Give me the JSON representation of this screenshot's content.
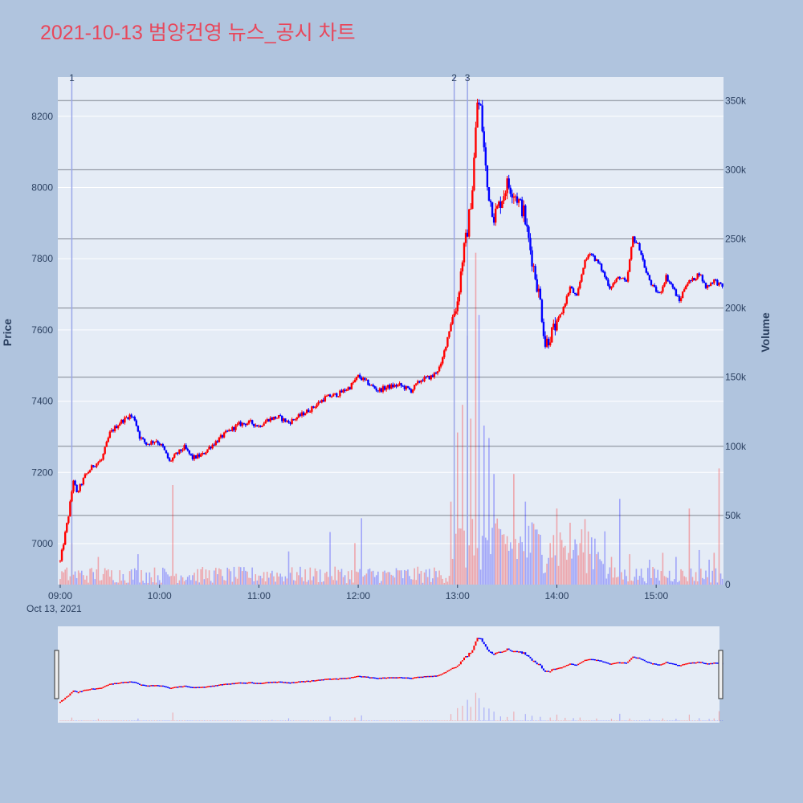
{
  "chart_data": {
    "type": "candlestick",
    "title": "2021-10-13 범양건영 뉴스_공시 차트",
    "ylabel": "Price",
    "y2label": "Volume",
    "ylim": [
      6885,
      8310
    ],
    "y2lim": [
      0,
      367000
    ],
    "price_ticks": [
      "7000",
      "7200",
      "7400",
      "7600",
      "7800",
      "8000",
      "8200"
    ],
    "volume_ticks": [
      "0",
      "50k",
      "100k",
      "150k",
      "200k",
      "250k",
      "300k",
      "350k"
    ],
    "time_ticks": [
      "09:00",
      "10:00",
      "11:00",
      "12:00",
      "13:00",
      "14:00",
      "15:00"
    ],
    "date_label": "Oct 13, 2021",
    "x_range_minutes": [
      0,
      390
    ],
    "news_markers": [
      {
        "label": "1",
        "minute": 7
      },
      {
        "label": "2",
        "minute": 238
      },
      {
        "label": "3",
        "minute": 246
      }
    ],
    "price_path": [
      [
        0,
        6950
      ],
      [
        5,
        7080
      ],
      [
        8,
        7180
      ],
      [
        10,
        7140
      ],
      [
        15,
        7190
      ],
      [
        20,
        7220
      ],
      [
        25,
        7235
      ],
      [
        30,
        7310
      ],
      [
        36,
        7340
      ],
      [
        42,
        7360
      ],
      [
        45,
        7350
      ],
      [
        48,
        7300
      ],
      [
        52,
        7280
      ],
      [
        58,
        7290
      ],
      [
        62,
        7270
      ],
      [
        66,
        7230
      ],
      [
        70,
        7250
      ],
      [
        75,
        7270
      ],
      [
        80,
        7240
      ],
      [
        86,
        7250
      ],
      [
        90,
        7270
      ],
      [
        95,
        7290
      ],
      [
        100,
        7310
      ],
      [
        108,
        7335
      ],
      [
        115,
        7340
      ],
      [
        120,
        7330
      ],
      [
        126,
        7350
      ],
      [
        132,
        7355
      ],
      [
        138,
        7340
      ],
      [
        145,
        7360
      ],
      [
        152,
        7380
      ],
      [
        160,
        7410
      ],
      [
        168,
        7420
      ],
      [
        175,
        7440
      ],
      [
        180,
        7470
      ],
      [
        186,
        7450
      ],
      [
        192,
        7430
      ],
      [
        198,
        7440
      ],
      [
        205,
        7445
      ],
      [
        212,
        7430
      ],
      [
        218,
        7460
      ],
      [
        225,
        7470
      ],
      [
        230,
        7500
      ],
      [
        236,
        7620
      ],
      [
        240,
        7680
      ],
      [
        243,
        7800
      ],
      [
        246,
        7880
      ],
      [
        249,
        8000
      ],
      [
        252,
        8240
      ],
      [
        254,
        8220
      ],
      [
        258,
        8000
      ],
      [
        262,
        7920
      ],
      [
        266,
        7960
      ],
      [
        270,
        8010
      ],
      [
        275,
        7980
      ],
      [
        280,
        7930
      ],
      [
        285,
        7800
      ],
      [
        290,
        7680
      ],
      [
        293,
        7560
      ],
      [
        298,
        7600
      ],
      [
        303,
        7650
      ],
      [
        308,
        7720
      ],
      [
        312,
        7690
      ],
      [
        316,
        7780
      ],
      [
        320,
        7820
      ],
      [
        326,
        7780
      ],
      [
        332,
        7720
      ],
      [
        338,
        7750
      ],
      [
        342,
        7730
      ],
      [
        346,
        7860
      ],
      [
        350,
        7830
      ],
      [
        354,
        7760
      ],
      [
        358,
        7720
      ],
      [
        362,
        7700
      ],
      [
        366,
        7750
      ],
      [
        370,
        7720
      ],
      [
        374,
        7680
      ],
      [
        378,
        7730
      ],
      [
        382,
        7740
      ],
      [
        386,
        7760
      ],
      [
        390,
        7720
      ],
      [
        395,
        7740
      ],
      [
        400,
        7720
      ]
    ],
    "volume_spikes": [
      [
        7,
        30000
      ],
      [
        23,
        20000
      ],
      [
        47,
        22000
      ],
      [
        68,
        72000
      ],
      [
        128,
        10000
      ],
      [
        138,
        24000
      ],
      [
        163,
        38000
      ],
      [
        178,
        30000
      ],
      [
        182,
        48000
      ],
      [
        236,
        60000
      ],
      [
        240,
        110000
      ],
      [
        243,
        130000
      ],
      [
        246,
        180000
      ],
      [
        248,
        120000
      ],
      [
        251,
        240000
      ],
      [
        253,
        195000
      ],
      [
        256,
        115000
      ],
      [
        259,
        106000
      ],
      [
        262,
        80000
      ],
      [
        266,
        40000
      ],
      [
        270,
        35000
      ],
      [
        274,
        80000
      ],
      [
        281,
        60000
      ],
      [
        285,
        45000
      ],
      [
        290,
        36000
      ],
      [
        296,
        30000
      ],
      [
        300,
        55000
      ],
      [
        305,
        28000
      ],
      [
        310,
        25000
      ],
      [
        314,
        30000
      ],
      [
        324,
        22000
      ],
      [
        333,
        20000
      ],
      [
        338,
        62000
      ],
      [
        344,
        22000
      ],
      [
        356,
        18000
      ],
      [
        364,
        23000
      ],
      [
        372,
        20000
      ],
      [
        380,
        55000
      ],
      [
        386,
        25000
      ],
      [
        392,
        18000
      ],
      [
        395,
        23000
      ],
      [
        398,
        84000
      ]
    ],
    "colors": {
      "up": "#ff0000",
      "down": "#0000ff",
      "title": "#e8475b",
      "plot_bg": "#e5ecf6",
      "paper_bg": "#b0c4de",
      "grid": "#ffffff",
      "grid2": "#7f8590",
      "marker_line": "#9aa6e8"
    }
  }
}
